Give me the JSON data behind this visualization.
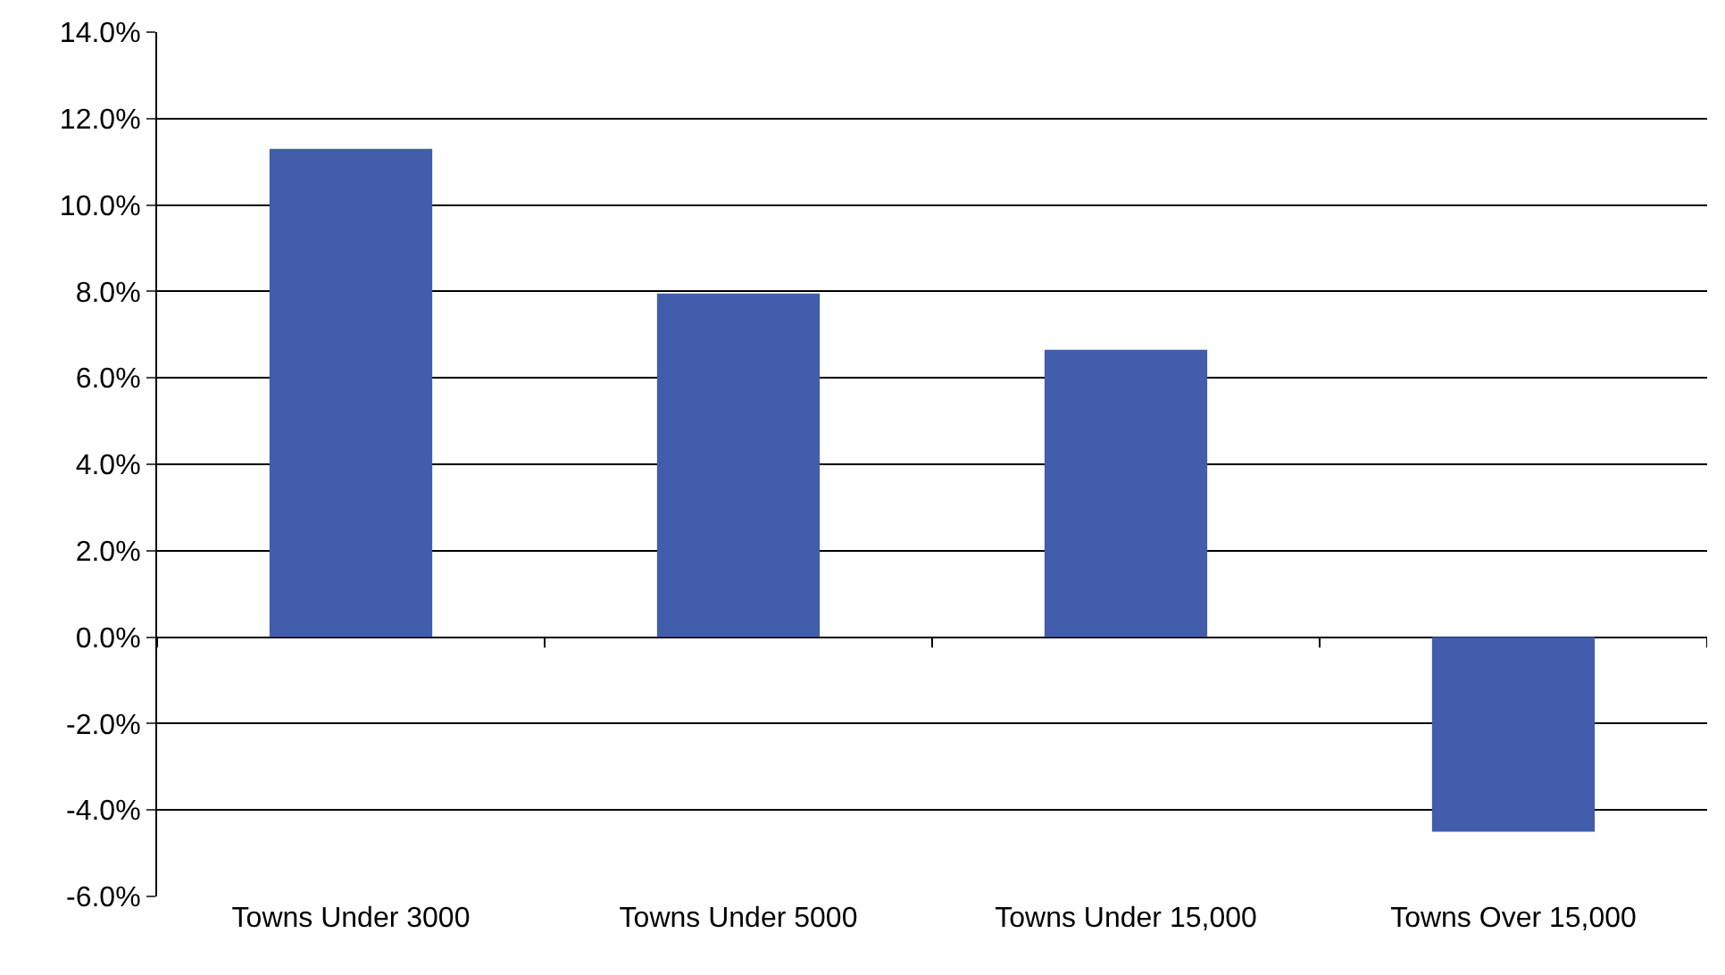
{
  "chart_data": {
    "type": "bar",
    "categories": [
      "Towns Under 3000",
      "Towns Under 5000",
      "Towns Under 15,000",
      "Towns Over 15,000"
    ],
    "values": [
      11.3,
      7.95,
      6.65,
      -4.5
    ],
    "color": "#415dab",
    "ylim": [
      -6,
      14
    ],
    "yticks": [
      {
        "value": -6,
        "label": "-6.0%"
      },
      {
        "value": -4,
        "label": "-4.0%"
      },
      {
        "value": -2,
        "label": "-2.0%"
      },
      {
        "value": 0,
        "label": "0.0%"
      },
      {
        "value": 2,
        "label": "2.0%"
      },
      {
        "value": 4,
        "label": "4.0%"
      },
      {
        "value": 6,
        "label": "6.0%"
      },
      {
        "value": 8,
        "label": "8.0%"
      },
      {
        "value": 10,
        "label": "10.0%"
      },
      {
        "value": 12,
        "label": "12.0%"
      },
      {
        "value": 14,
        "label": "14.0%"
      }
    ],
    "grid": "y"
  }
}
